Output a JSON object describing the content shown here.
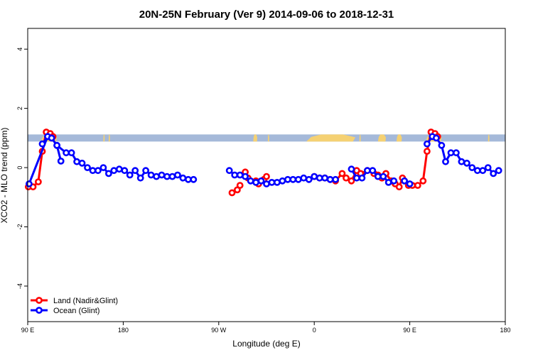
{
  "chart_data": {
    "type": "line",
    "title": "20N-25N February (Ver 9)   2014-09-06 to 2018-12-31",
    "xlabel": "Longitude (deg E)",
    "ylabel": "XCO2 - MLO trend (ppm)",
    "xlim": [
      90,
      450
    ],
    "ylim": [
      -5.2,
      4.7
    ],
    "x_ticks": [
      {
        "value": 90,
        "label": "90 E"
      },
      {
        "value": 162,
        "label": "180"
      },
      {
        "value": 234,
        "label": "90 W"
      },
      {
        "value": 306,
        "label": "0"
      },
      {
        "value": 378,
        "label": "90 E"
      },
      {
        "value": 450,
        "label": "180"
      }
    ],
    "y_ticks": [
      {
        "value": -4,
        "label": "-4"
      },
      {
        "value": -2,
        "label": "-2"
      },
      {
        "value": 0,
        "label": "0"
      },
      {
        "value": 2,
        "label": "2"
      },
      {
        "value": 4,
        "label": "4"
      }
    ],
    "map_band": {
      "ymin": 0.88,
      "ymax": 1.12,
      "ocean_color": "#a5b9d9",
      "land_color": "#f5d173"
    },
    "legend_position": "bottom-left",
    "series": [
      {
        "name": "Land (Nadir&Glint)",
        "color": "#ff0000",
        "points": [
          [
            90.5,
            -0.65
          ],
          [
            94,
            -0.65
          ],
          [
            101,
            0.55
          ],
          [
            109,
            1.05
          ],
          [
            270,
            -0.3
          ],
          [
            357,
            -0.35
          ],
          [
            367,
            -0.55
          ],
          [
            370,
            -0.65
          ],
          [
            372.5,
            -0.35
          ],
          [
            380,
            -0.6
          ],
          [
            384,
            -0.6
          ],
          [
            391,
            0.55
          ],
          [
            399,
            1.05
          ]
        ],
        "segments": [
          [
            [
              90.5,
              -0.65
            ],
            [
              94,
              -0.65
            ],
            [
              98,
              -0.48
            ],
            [
              101,
              0.55
            ],
            [
              104,
              1.2
            ],
            [
              107,
              1.15
            ],
            [
              109,
              1.05
            ]
          ],
          [
            [
              244,
              -0.85
            ],
            [
              248,
              -0.75
            ],
            [
              250,
              -0.6
            ]
          ],
          [
            [
              254,
              -0.15
            ],
            [
              256,
              -0.35
            ],
            [
              262,
              -0.45
            ],
            [
              264,
              -0.55
            ],
            [
              268,
              -0.4
            ],
            [
              270,
              -0.3
            ]
          ],
          [
            [
              306,
              -0.3
            ],
            [
              310,
              -0.35
            ],
            [
              314,
              -0.35
            ],
            [
              318,
              -0.4
            ],
            [
              322,
              -0.45
            ],
            [
              327,
              -0.2
            ],
            [
              330,
              -0.35
            ],
            [
              334,
              -0.45
            ],
            [
              338,
              -0.1
            ],
            [
              341,
              -0.2
            ],
            [
              346,
              -0.1
            ],
            [
              351,
              -0.2
            ],
            [
              354,
              -0.25
            ],
            [
              357,
              -0.35
            ]
          ],
          [
            [
              357,
              -0.35
            ],
            [
              360,
              -0.2
            ],
            [
              364,
              -0.45
            ],
            [
              367,
              -0.55
            ],
            [
              370,
              -0.65
            ],
            [
              372.5,
              -0.35
            ],
            [
              374,
              -0.45
            ],
            [
              377,
              -0.6
            ],
            [
              380,
              -0.6
            ],
            [
              384,
              -0.6
            ],
            [
              388,
              -0.45
            ],
            [
              391,
              0.55
            ],
            [
              394,
              1.2
            ],
            [
              397,
              1.15
            ],
            [
              399,
              1.05
            ]
          ]
        ]
      },
      {
        "name": "Ocean (Glint)",
        "color": "#0000ff",
        "segments": [
          [
            [
              91,
              -0.55
            ],
            [
              105,
              1.05
            ],
            [
              108,
              1.0
            ],
            [
              112,
              0.75
            ],
            [
              119,
              0.5
            ],
            [
              123,
              0.5
            ],
            [
              127,
              0.2
            ],
            [
              131,
              0.15
            ],
            [
              135,
              0.0
            ],
            [
              139,
              -0.1
            ],
            [
              143,
              -0.1
            ],
            [
              147,
              0.0
            ],
            [
              151,
              -0.2
            ],
            [
              155,
              -0.1
            ],
            [
              159,
              -0.05
            ],
            [
              163,
              -0.1
            ],
            [
              167,
              -0.25
            ],
            [
              171,
              -0.1
            ],
            [
              175,
              -0.35
            ],
            [
              179,
              -0.1
            ],
            [
              183,
              -0.25
            ],
            [
              187,
              -0.3
            ],
            [
              191,
              -0.25
            ],
            [
              195,
              -0.3
            ],
            [
              199,
              -0.3
            ],
            [
              203,
              -0.25
            ],
            [
              207,
              -0.35
            ],
            [
              211,
              -0.4
            ],
            [
              215,
              -0.4
            ]
          ],
          [
            [
              101,
              0.8
            ],
            [
              105,
              1.05
            ],
            [
              108,
              1.0
            ],
            [
              112,
              0.75
            ],
            [
              115,
              0.22
            ]
          ],
          [
            [
              242,
              -0.1
            ],
            [
              246,
              -0.25
            ],
            [
              250,
              -0.25
            ],
            [
              254,
              -0.3
            ],
            [
              258,
              -0.45
            ],
            [
              262,
              -0.5
            ],
            [
              266,
              -0.45
            ],
            [
              270,
              -0.55
            ],
            [
              274,
              -0.5
            ],
            [
              278,
              -0.5
            ],
            [
              282,
              -0.45
            ],
            [
              286,
              -0.4
            ],
            [
              290,
              -0.4
            ],
            [
              294,
              -0.4
            ],
            [
              298,
              -0.35
            ],
            [
              302,
              -0.4
            ],
            [
              306,
              -0.3
            ],
            [
              310,
              -0.35
            ],
            [
              314,
              -0.35
            ],
            [
              318,
              -0.4
            ],
            [
              322,
              -0.4
            ]
          ],
          [
            [
              334,
              -0.05
            ],
            [
              338,
              -0.35
            ],
            [
              342,
              -0.35
            ],
            [
              346,
              -0.1
            ],
            [
              350,
              -0.1
            ],
            [
              354,
              -0.3
            ],
            [
              358,
              -0.3
            ],
            [
              362,
              -0.5
            ],
            [
              366,
              -0.45
            ]
          ],
          [
            [
              374,
              -0.45
            ],
            [
              378,
              -0.55
            ]
          ],
          [
            [
              391,
              0.8
            ],
            [
              395,
              1.05
            ],
            [
              398,
              1.0
            ],
            [
              402,
              0.75
            ],
            [
              405,
              0.2
            ],
            [
              409,
              0.5
            ],
            [
              413,
              0.5
            ],
            [
              417,
              0.2
            ],
            [
              421,
              0.15
            ],
            [
              425,
              0.0
            ],
            [
              429,
              -0.1
            ],
            [
              433,
              -0.1
            ],
            [
              437,
              0.0
            ],
            [
              441,
              -0.2
            ],
            [
              445,
              -0.1
            ]
          ]
        ]
      }
    ]
  }
}
